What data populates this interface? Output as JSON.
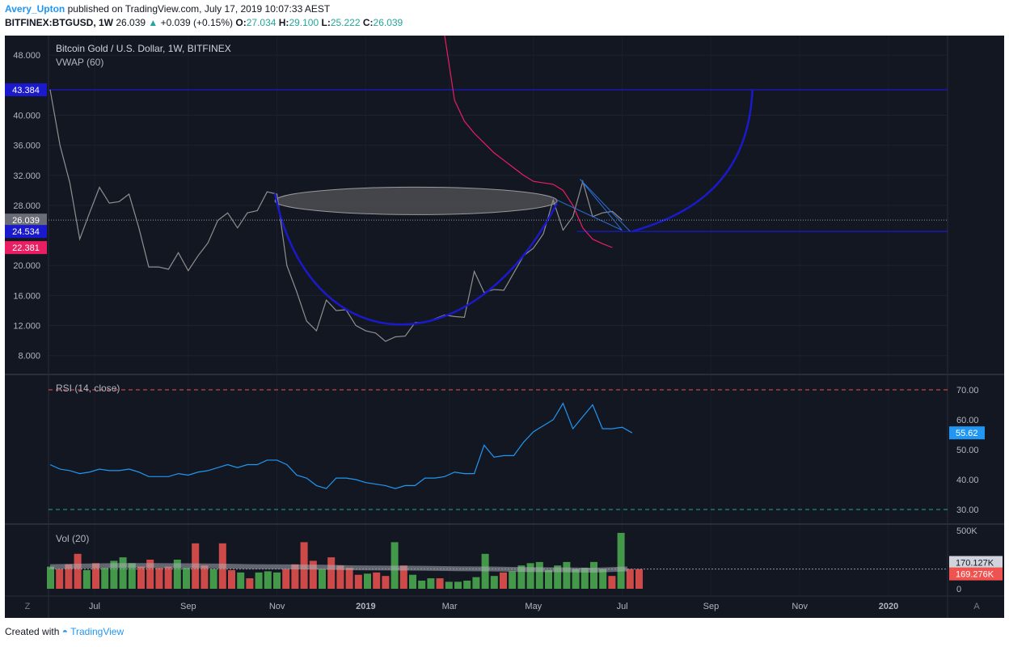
{
  "header": {
    "author": "Avery_Upton",
    "published_text": "published on TradingView.com, July 17, 2019 10:07:33 AEST",
    "symbol": "BITFINEX:BTGUSD, 1W",
    "last": "26.039",
    "change_arrow": "▲",
    "change": "+0.039 (+0.15%)",
    "o_label": "O:",
    "o": "27.034",
    "h_label": "H:",
    "h": "29.100",
    "l_label": "L:",
    "l": "25.222",
    "c_label": "C:",
    "c": "26.039"
  },
  "footer": {
    "created_with": "Created with",
    "brand": "TradingView"
  },
  "colors": {
    "background": "#131722",
    "price_line": "#8f8f8f",
    "vwap": "#e91e63",
    "pattern_curve": "#1a1acc",
    "horizontal_lines": "#1a1acc",
    "rsi": "#2196f3",
    "volume_up": "#4caf50",
    "volume_down": "#ef5350"
  },
  "chart_data": [
    {
      "type": "line",
      "title": "Bitcoin Gold / U.S. Dollar, 1W, BITFINEX",
      "indicator_label": "VWAP (60)",
      "x_tick_labels": [
        "Jul",
        "Sep",
        "Nov",
        "2019",
        "Mar",
        "May",
        "Jul",
        "Sep",
        "Nov",
        "2020"
      ],
      "y_ticks": [
        "48.000",
        "40.000",
        "36.000",
        "32.000",
        "28.000",
        "20.000",
        "16.000",
        "12.000",
        "8.000"
      ],
      "ylim": [
        5.6,
        50.6
      ],
      "price_axis_labels": [
        {
          "text": "43.384",
          "value": 43.384,
          "color": "#1a1acc"
        },
        {
          "text": "26.039",
          "value": 26.039,
          "color": "#6a6d78"
        },
        {
          "text": "24.534",
          "value": 24.534,
          "color": "#1a1acc"
        },
        {
          "text": "22.381",
          "value": 22.381,
          "color": "#e91e63"
        }
      ],
      "series": [
        {
          "name": "BTGUSD",
          "week_index_start": 0,
          "values": [
            43.4,
            36,
            31,
            23.5,
            27,
            30.4,
            28.3,
            28.5,
            29.5,
            25,
            19.8,
            19.8,
            19.5,
            21.7,
            19.3,
            21.3,
            23,
            26,
            27,
            25,
            27,
            27.3,
            29.8,
            29.5,
            20,
            16.5,
            12.6,
            11.3,
            15.4,
            14,
            14.1,
            12,
            11.3,
            11,
            9.9,
            10.5,
            10.6,
            12.4,
            12.4,
            12.9,
            13.4,
            13.2,
            13.1,
            19.2,
            16.4,
            16.8,
            16.7,
            19,
            21.3,
            22.3,
            24.2,
            28.7,
            24.7,
            26.5,
            31.2,
            26.5,
            27,
            27.2,
            26.04
          ]
        },
        {
          "name": "VWAP (60)",
          "week_index_start": 40,
          "values": [
            52,
            42,
            39.2,
            37.6,
            36.3,
            35,
            34,
            33,
            32,
            31.2,
            31,
            30.8,
            30,
            28,
            25,
            23.5,
            22.9,
            22.381
          ]
        }
      ],
      "annotations": [
        {
          "kind": "horizontal_line",
          "value": 43.384
        },
        {
          "kind": "horizontal_line",
          "value": 24.534,
          "from_week": 53.4
        },
        {
          "kind": "cup_curve",
          "from_week": 22.8,
          "to_week": 51.4,
          "rim": 29.6,
          "bottom": 9.8
        },
        {
          "kind": "handle_wedge",
          "from_week": 51.4,
          "to_week": 58.8
        },
        {
          "kind": "projection_curve",
          "from_week": 59,
          "to_week": 71.2,
          "from": 24.534,
          "to": 43.384
        },
        {
          "kind": "ellipse_lid",
          "from_week": 22.8,
          "to_week": 51.4,
          "center_value": 28.6
        }
      ]
    },
    {
      "type": "line",
      "title": "RSI (14, close)",
      "y_ticks": [
        "70.00",
        "60.00",
        "50.00",
        "40.00",
        "30.00"
      ],
      "ylim": [
        25,
        72
      ],
      "bands": [
        70,
        30
      ],
      "last_label": "55.62",
      "series": [
        {
          "name": "RSI (14, close)",
          "values": [
            45,
            43.5,
            43,
            42,
            42.5,
            43.5,
            43,
            43,
            43.5,
            42.5,
            41,
            41,
            41,
            42,
            41.5,
            42.5,
            43,
            44,
            45,
            44,
            45,
            45,
            46.5,
            46.5,
            45,
            41.5,
            40.5,
            38,
            37,
            40.5,
            40.5,
            40,
            39,
            38.5,
            38,
            37,
            38,
            38,
            40.5,
            40.5,
            41,
            42.5,
            42,
            42,
            51.5,
            47.5,
            48,
            48,
            52.5,
            56,
            58,
            60,
            65.5,
            57,
            61,
            65,
            57,
            57,
            57.5,
            55.62
          ]
        }
      ]
    },
    {
      "type": "bar",
      "title": "Vol (20)",
      "y_ticks": [
        "500K",
        "0"
      ],
      "ylim": [
        0,
        525000
      ],
      "value_labels": [
        "170.127K",
        "169.276K"
      ],
      "ma_value": 170127,
      "last_value": 169276,
      "series": [
        {
          "name": "Vol (20)",
          "values": [
            190000,
            170000,
            210000,
            300000,
            160000,
            220000,
            180000,
            240000,
            270000,
            220000,
            190000,
            250000,
            180000,
            190000,
            250000,
            180000,
            390000,
            200000,
            170000,
            390000,
            160000,
            140000,
            90000,
            140000,
            150000,
            140000,
            170000,
            210000,
            400000,
            240000,
            170000,
            270000,
            200000,
            180000,
            120000,
            130000,
            140000,
            110000,
            400000,
            200000,
            120000,
            70000,
            90000,
            90000,
            60000,
            60000,
            70000,
            100000,
            300000,
            110000,
            140000,
            150000,
            200000,
            220000,
            230000,
            160000,
            200000,
            230000,
            170000,
            180000,
            230000,
            170000,
            110000,
            480000,
            170000,
            169276
          ],
          "up": [
            1,
            0,
            0,
            0,
            1,
            0,
            1,
            1,
            1,
            1,
            0,
            0,
            0,
            0,
            1,
            1,
            0,
            0,
            1,
            0,
            0,
            1,
            0,
            1,
            1,
            1,
            0,
            0,
            0,
            0,
            1,
            0,
            0,
            0,
            0,
            1,
            0,
            0,
            1,
            0,
            1,
            1,
            1,
            0,
            1,
            1,
            1,
            1,
            1,
            1,
            0,
            1,
            1,
            1,
            1,
            1,
            1,
            1,
            1,
            1,
            1,
            1,
            0,
            1,
            0,
            0
          ]
        }
      ]
    }
  ]
}
